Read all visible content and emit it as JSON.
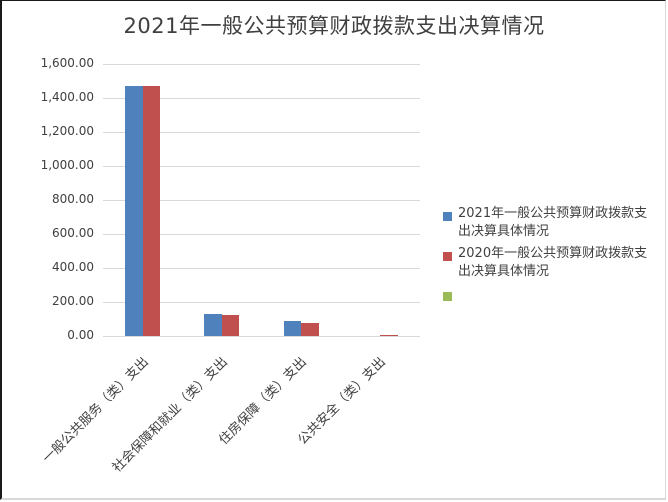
{
  "title": "2021年一般公共预算财政拨款支出决算情况",
  "colors": {
    "series_2021": "#4f81bd",
    "series_2020": "#c0504d",
    "series_3": "#9bbb59",
    "grid": "#d9d9d9",
    "text": "#404040"
  },
  "y_axis": {
    "ticks": [
      "1,600.00",
      "1,400.00",
      "1,200.00",
      "1,000.00",
      "800.00",
      "600.00",
      "400.00",
      "200.00",
      "0.00"
    ]
  },
  "x_axis": {
    "labels": [
      "一般公共服务（类）支出",
      "社会保障和就业（类）支出",
      "住房保障（类）支出",
      "公共安全（类）支出"
    ]
  },
  "legend": {
    "items": [
      {
        "label": "2021年一般公共预算财政拨款支出决算具体情况",
        "color": "#4f81bd"
      },
      {
        "label": "2020年一般公共预算财政拨款支出决算具体情况",
        "color": "#c0504d"
      },
      {
        "label": "",
        "color": "#9bbb59"
      }
    ]
  },
  "chart_data": {
    "type": "bar",
    "title": "2021年一般公共预算财政拨款支出决算情况",
    "xlabel": "",
    "ylabel": "",
    "ylim": [
      0,
      1600
    ],
    "yticks": [
      0,
      200,
      400,
      600,
      800,
      1000,
      1200,
      1400,
      1600
    ],
    "grid": true,
    "legend_position": "right",
    "categories": [
      "一般公共服务（类）支出",
      "社会保障和就业（类）支出",
      "住房保障（类）支出",
      "公共安全（类）支出"
    ],
    "series": [
      {
        "name": "2021年一般公共预算财政拨款支出决算具体情况",
        "color": "#4f81bd",
        "values": [
          1470,
          130,
          88,
          0
        ]
      },
      {
        "name": "2020年一般公共预算财政拨款支出决算具体情况",
        "color": "#c0504d",
        "values": [
          1470,
          124,
          76,
          8
        ]
      },
      {
        "name": "",
        "color": "#9bbb59",
        "values": [
          0,
          0,
          0,
          0
        ]
      }
    ]
  }
}
